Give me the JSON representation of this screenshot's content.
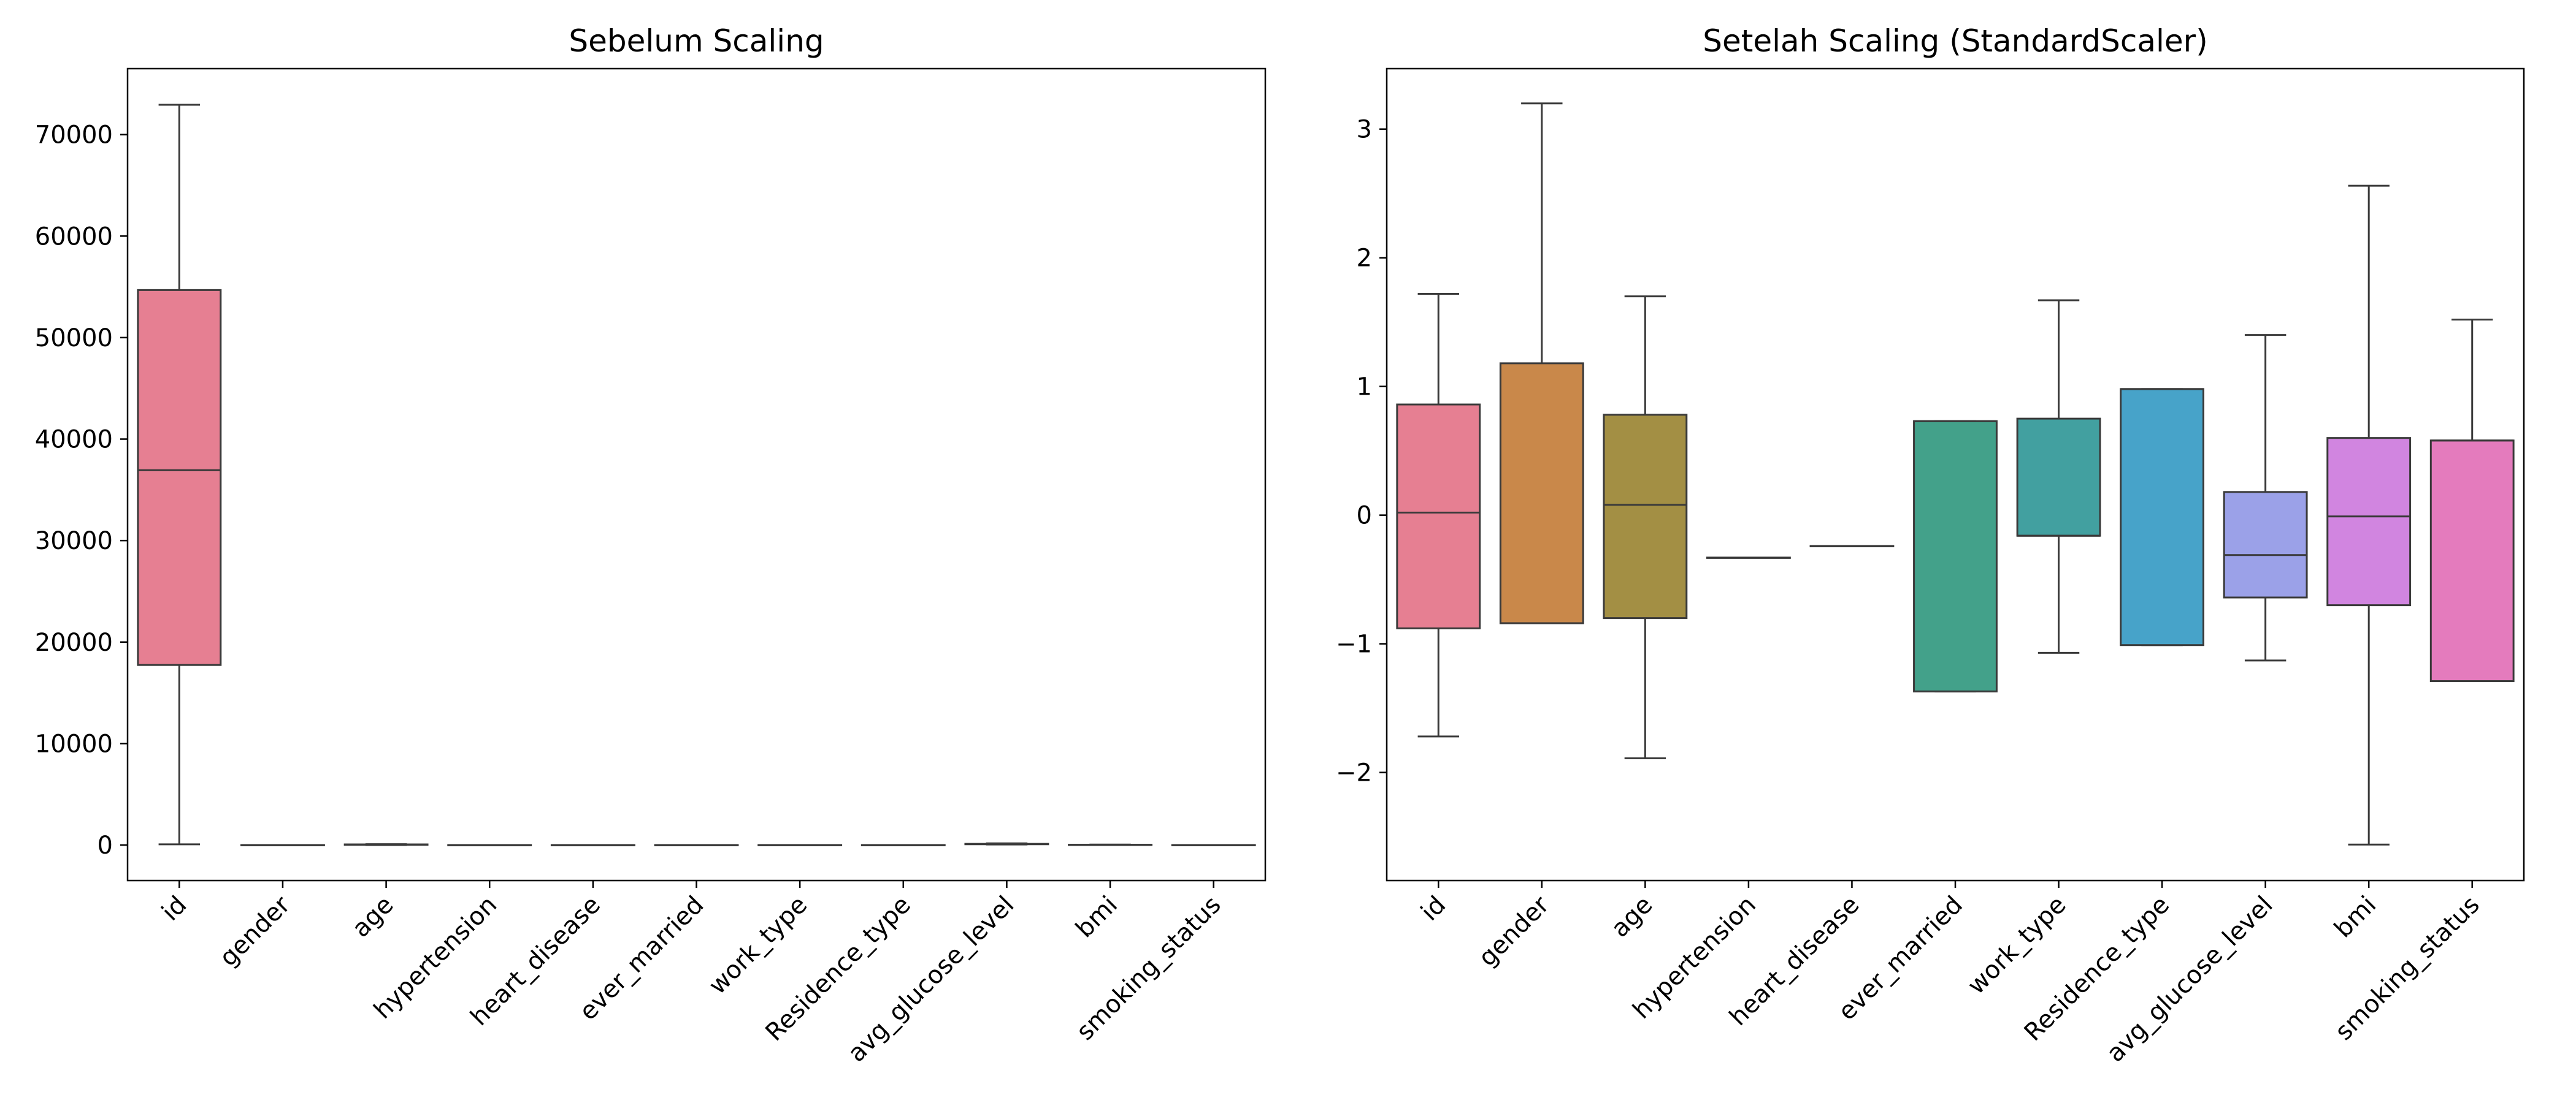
{
  "chart_data": [
    {
      "type": "box",
      "title": "Sebelum Scaling",
      "xlabel": "",
      "ylabel": "",
      "ylim": [
        -3500,
        76500
      ],
      "yticks": [
        0,
        10000,
        20000,
        30000,
        40000,
        50000,
        60000,
        70000
      ],
      "ytick_labels": [
        "0",
        "10000",
        "20000",
        "30000",
        "40000",
        "50000",
        "60000",
        "70000"
      ],
      "grid": false,
      "categories": [
        "id",
        "gender",
        "age",
        "hypertension",
        "heart_disease",
        "ever_married",
        "work_type",
        "Residence_type",
        "avg_glucose_level",
        "bmi",
        "smoking_status"
      ],
      "boxes": [
        {
          "whislo": 67,
          "q1": 17741,
          "med": 36932,
          "q3": 54682,
          "whishi": 72940
        },
        {
          "whislo": 0,
          "q1": 0,
          "med": 0,
          "q3": 1,
          "whishi": 2
        },
        {
          "whislo": 0,
          "q1": 25,
          "med": 45,
          "q3": 61,
          "whishi": 82
        },
        {
          "whislo": 0,
          "q1": 0,
          "med": 0,
          "q3": 0,
          "whishi": 0
        },
        {
          "whislo": 0,
          "q1": 0,
          "med": 0,
          "q3": 0,
          "whishi": 0
        },
        {
          "whislo": 0,
          "q1": 0,
          "med": 1,
          "q3": 1,
          "whishi": 1
        },
        {
          "whislo": 0,
          "q1": 2,
          "med": 2,
          "q3": 3,
          "whishi": 4
        },
        {
          "whislo": 0,
          "q1": 0,
          "med": 1,
          "q3": 1,
          "whishi": 1
        },
        {
          "whislo": 55,
          "q1": 77,
          "med": 92,
          "q3": 114,
          "whishi": 169
        },
        {
          "whislo": 10,
          "q1": 23,
          "med": 28,
          "q3": 33,
          "whishi": 47
        },
        {
          "whislo": 0,
          "q1": 0,
          "med": 2,
          "q3": 2,
          "whishi": 3
        }
      ]
    },
    {
      "type": "box",
      "title": "Setelah Scaling (StandardScaler)",
      "xlabel": "",
      "ylabel": "",
      "ylim": [
        -2.84,
        3.47
      ],
      "yticks": [
        -2,
        -1,
        0,
        1,
        2,
        3
      ],
      "ytick_labels": [
        "−2",
        "−1",
        "0",
        "1",
        "2",
        "3"
      ],
      "grid": false,
      "categories": [
        "id",
        "gender",
        "age",
        "hypertension",
        "heart_disease",
        "ever_married",
        "work_type",
        "Residence_type",
        "avg_glucose_level",
        "bmi",
        "smoking_status"
      ],
      "boxes": [
        {
          "whislo": -1.72,
          "q1": -0.88,
          "med": 0.02,
          "q3": 0.86,
          "whishi": 1.72
        },
        {
          "whislo": -0.84,
          "q1": -0.84,
          "med": -0.84,
          "q3": 1.18,
          "whishi": 3.2
        },
        {
          "whislo": -1.89,
          "q1": -0.8,
          "med": 0.08,
          "q3": 0.78,
          "whishi": 1.7
        },
        {
          "whislo": -0.33,
          "q1": -0.33,
          "med": -0.33,
          "q3": -0.33,
          "whishi": -0.33
        },
        {
          "whislo": -0.24,
          "q1": -0.24,
          "med": -0.24,
          "q3": -0.24,
          "whishi": -0.24
        },
        {
          "whislo": -1.37,
          "q1": -1.37,
          "med": 0.73,
          "q3": 0.73,
          "whishi": 0.73
        },
        {
          "whislo": -1.07,
          "q1": -0.16,
          "med": -0.16,
          "q3": 0.75,
          "whishi": 1.67
        },
        {
          "whislo": -1.01,
          "q1": -1.01,
          "med": 0.98,
          "q3": 0.98,
          "whishi": 0.98
        },
        {
          "whislo": -1.13,
          "q1": -0.64,
          "med": -0.31,
          "q3": 0.18,
          "whishi": 1.4
        },
        {
          "whislo": -2.56,
          "q1": -0.7,
          "med": -0.01,
          "q3": 0.6,
          "whishi": 2.56
        },
        {
          "whislo": -1.29,
          "q1": -1.29,
          "med": 0.58,
          "q3": 0.58,
          "whishi": 1.52
        }
      ]
    }
  ],
  "colors": [
    "#e67f92",
    "#c9884a",
    "#a38f44",
    "#8c9a3f",
    "#4aa35a",
    "#43a18a",
    "#42a0a0",
    "#47a3c9",
    "#9ba1e8",
    "#d185e0",
    "#e47bbd"
  ]
}
